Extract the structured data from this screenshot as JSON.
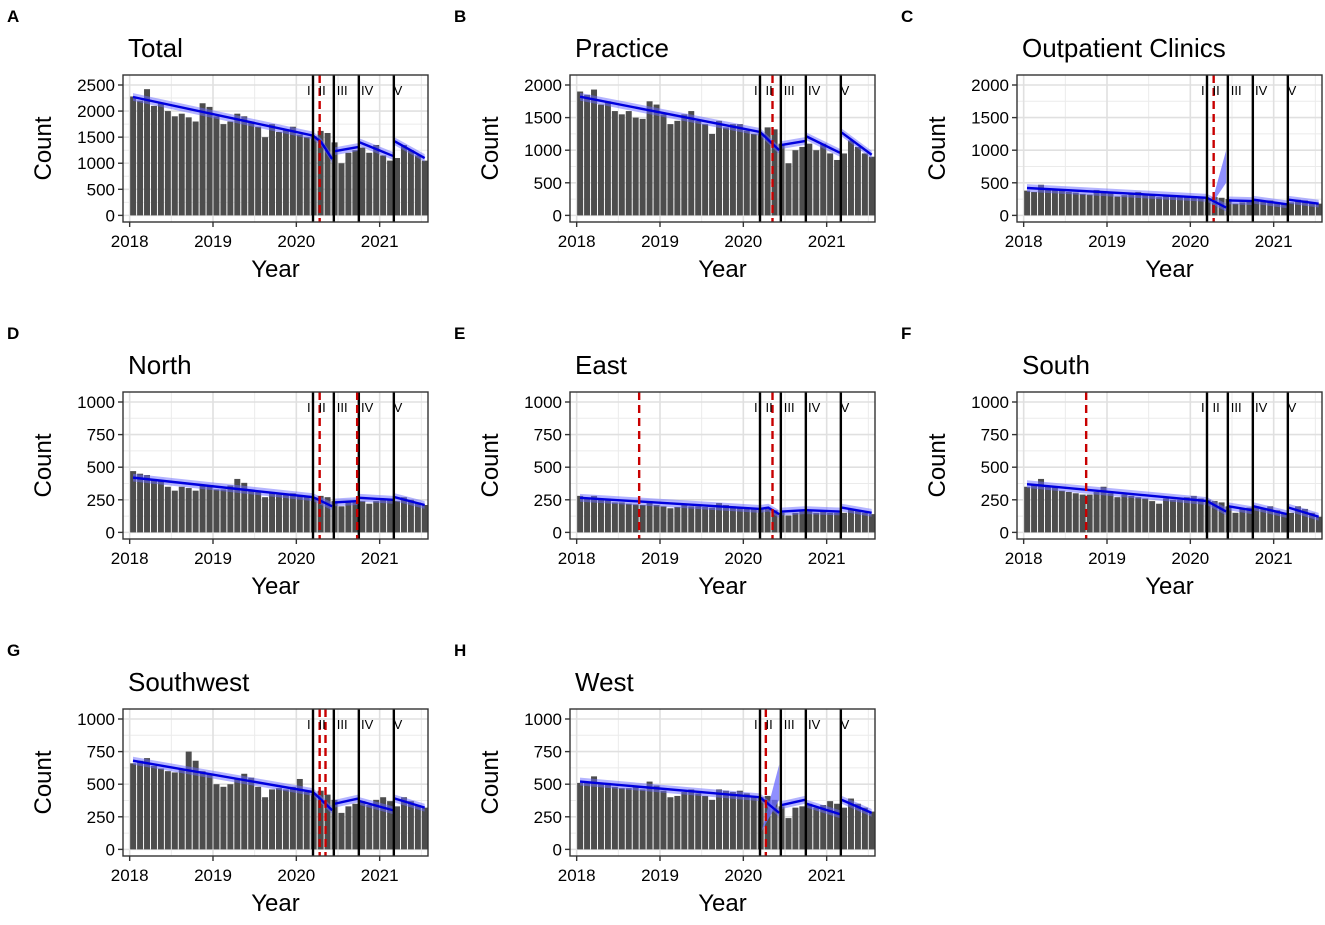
{
  "figure": {
    "phase_labels": [
      "I",
      "II",
      "III",
      "IV",
      "V"
    ],
    "x_ticks": [
      2018,
      2019,
      2020,
      2021
    ],
    "axis_titles": {
      "x": "Year",
      "y": "Count"
    },
    "colors": {
      "bar": "#4d4d4d",
      "trend": "#0000dd",
      "band": "#6a6aff",
      "breakpoint": "#c80000",
      "phase_line": "#000000"
    }
  },
  "chart_data": [
    {
      "type": "bar",
      "panel": "A",
      "title": "Total",
      "xlabel": "Year",
      "ylabel": "Count",
      "ylim": [
        0,
        2500
      ],
      "yticks": [
        0,
        500,
        1000,
        1500,
        2000,
        2500
      ],
      "xlim": [
        2017.92,
        2021.58
      ],
      "vlines": [
        2020.2,
        2020.45,
        2020.75,
        2021.17
      ],
      "breakpoints": [
        2020.28
      ],
      "values": [
        2280,
        2200,
        2420,
        2100,
        2150,
        2000,
        1900,
        1950,
        1880,
        1800,
        2150,
        2080,
        1900,
        1750,
        1800,
        1950,
        1900,
        1800,
        1700,
        1500,
        1750,
        1600,
        1650,
        1700,
        1550,
        1500,
        1520,
        1620,
        1580,
        1400,
        1000,
        1200,
        1250,
        1300,
        1200,
        1350,
        1150,
        1050,
        1100,
        1350,
        1250,
        1150,
        1050
      ],
      "trend": [
        [
          2018.04,
          2270
        ],
        [
          2020.2,
          1530
        ],
        [
          2020.3,
          1400
        ],
        [
          2020.43,
          1080
        ],
        null,
        [
          2020.46,
          1230
        ],
        [
          2020.74,
          1310
        ],
        null,
        [
          2020.76,
          1400
        ],
        [
          2021.16,
          1140
        ],
        null,
        [
          2021.18,
          1420
        ],
        [
          2021.54,
          1100
        ]
      ]
    },
    {
      "type": "bar",
      "panel": "B",
      "title": "Practice",
      "xlabel": "Year",
      "ylabel": "Count",
      "ylim": [
        0,
        2000
      ],
      "yticks": [
        0,
        500,
        1000,
        1500,
        2000
      ],
      "xlim": [
        2017.92,
        2021.58
      ],
      "vlines": [
        2020.2,
        2020.45,
        2020.75,
        2021.17
      ],
      "breakpoints": [
        2020.35
      ],
      "values": [
        1900,
        1850,
        1930,
        1700,
        1750,
        1600,
        1550,
        1600,
        1500,
        1480,
        1750,
        1700,
        1550,
        1400,
        1450,
        1550,
        1600,
        1450,
        1400,
        1250,
        1450,
        1350,
        1400,
        1400,
        1300,
        1250,
        1260,
        1350,
        1320,
        1100,
        800,
        1000,
        1050,
        1100,
        1000,
        1100,
        950,
        850,
        950,
        1150,
        1050,
        950,
        900
      ],
      "trend": [
        [
          2018.04,
          1820
        ],
        [
          2020.2,
          1280
        ],
        [
          2020.43,
          1000
        ],
        null,
        [
          2020.46,
          1080
        ],
        [
          2020.74,
          1140
        ],
        null,
        [
          2020.76,
          1210
        ],
        [
          2021.16,
          960
        ],
        null,
        [
          2021.18,
          1270
        ],
        [
          2021.54,
          930
        ]
      ]
    },
    {
      "type": "bar",
      "panel": "C",
      "title": "Outpatient Clinics",
      "xlabel": "Year",
      "ylabel": "Count",
      "ylim": [
        0,
        2000
      ],
      "yticks": [
        0,
        500,
        1000,
        1500,
        2000
      ],
      "xlim": [
        2017.92,
        2021.58
      ],
      "vlines": [
        2020.2,
        2020.45,
        2020.75,
        2021.17
      ],
      "breakpoints": [
        2020.28
      ],
      "values": [
        380,
        360,
        470,
        410,
        400,
        380,
        360,
        350,
        330,
        320,
        390,
        370,
        340,
        290,
        310,
        340,
        360,
        320,
        310,
        280,
        320,
        300,
        290,
        300,
        280,
        270,
        260,
        280,
        270,
        250,
        180,
        200,
        220,
        240,
        210,
        230,
        200,
        190,
        200,
        240,
        230,
        200,
        180
      ],
      "trend": [
        [
          2018.04,
          420
        ],
        [
          2020.2,
          270
        ],
        [
          2020.43,
          120
        ],
        null,
        [
          2020.46,
          230
        ],
        [
          2020.74,
          220
        ],
        null,
        [
          2020.76,
          240
        ],
        [
          2021.16,
          170
        ],
        null,
        [
          2021.18,
          240
        ],
        [
          2021.54,
          180
        ]
      ],
      "bands": [
        [
          2020.25,
          2020.43,
          500,
          1000,
          80
        ]
      ]
    },
    {
      "type": "bar",
      "panel": "D",
      "title": "North",
      "xlabel": "Year",
      "ylabel": "Count",
      "ylim": [
        0,
        1000
      ],
      "yticks": [
        0,
        250,
        500,
        750,
        1000
      ],
      "xlim": [
        2017.92,
        2021.58
      ],
      "vlines": [
        2020.2,
        2020.45,
        2020.75,
        2021.17
      ],
      "breakpoints": [
        2020.28,
        2020.73
      ],
      "values": [
        470,
        450,
        440,
        400,
        390,
        350,
        320,
        350,
        340,
        320,
        360,
        350,
        330,
        330,
        360,
        410,
        380,
        320,
        310,
        270,
        310,
        290,
        290,
        300,
        280,
        280,
        270,
        280,
        270,
        240,
        200,
        230,
        230,
        240,
        220,
        240,
        250,
        250,
        240,
        270,
        250,
        230,
        210
      ],
      "trend": [
        [
          2018.04,
          420
        ],
        [
          2020.2,
          270
        ],
        [
          2020.43,
          200
        ],
        null,
        [
          2020.46,
          230
        ],
        [
          2020.74,
          240
        ],
        null,
        [
          2020.76,
          265
        ],
        [
          2021.16,
          250
        ],
        null,
        [
          2021.18,
          270
        ],
        [
          2021.54,
          210
        ]
      ]
    },
    {
      "type": "bar",
      "panel": "E",
      "title": "East",
      "xlabel": "Year",
      "ylabel": "Count",
      "ylim": [
        0,
        1000
      ],
      "yticks": [
        0,
        250,
        500,
        750,
        1000
      ],
      "xlim": [
        2017.92,
        2021.58
      ],
      "vlines": [
        2020.2,
        2020.45,
        2020.75,
        2021.17
      ],
      "breakpoints": [
        2018.75,
        2020.35
      ],
      "values": [
        280,
        260,
        280,
        250,
        260,
        230,
        230,
        220,
        215,
        210,
        240,
        210,
        200,
        185,
        195,
        210,
        200,
        200,
        195,
        190,
        225,
        210,
        200,
        195,
        190,
        180,
        175,
        180,
        170,
        150,
        130,
        150,
        160,
        160,
        150,
        165,
        150,
        150,
        150,
        180,
        165,
        150,
        140
      ],
      "trend": [
        [
          2018.04,
          265
        ],
        [
          2020.2,
          180
        ],
        [
          2020.3,
          190
        ],
        [
          2020.43,
          140
        ],
        null,
        [
          2020.46,
          160
        ],
        [
          2020.74,
          170
        ],
        null,
        [
          2020.76,
          170
        ],
        [
          2021.16,
          160
        ],
        null,
        [
          2021.18,
          190
        ],
        [
          2021.54,
          150
        ]
      ]
    },
    {
      "type": "bar",
      "panel": "F",
      "title": "South",
      "xlabel": "Year",
      "ylabel": "Count",
      "ylim": [
        0,
        1000
      ],
      "yticks": [
        0,
        250,
        500,
        750,
        1000
      ],
      "xlim": [
        2017.92,
        2021.58
      ],
      "vlines": [
        2020.2,
        2020.45,
        2020.75,
        2021.17
      ],
      "breakpoints": [
        2018.75
      ],
      "values": [
        350,
        360,
        410,
        350,
        350,
        320,
        310,
        300,
        290,
        290,
        310,
        350,
        300,
        270,
        290,
        280,
        270,
        260,
        240,
        220,
        260,
        250,
        250,
        270,
        280,
        260,
        250,
        240,
        230,
        200,
        150,
        180,
        190,
        200,
        180,
        200,
        170,
        150,
        150,
        200,
        180,
        150,
        120
      ],
      "trend": [
        [
          2018.04,
          370
        ],
        [
          2020.2,
          240
        ],
        [
          2020.43,
          160
        ],
        null,
        [
          2020.46,
          200
        ],
        [
          2020.74,
          170
        ],
        null,
        [
          2020.76,
          200
        ],
        [
          2021.16,
          140
        ],
        null,
        [
          2021.18,
          190
        ],
        [
          2021.54,
          120
        ]
      ]
    },
    {
      "type": "bar",
      "panel": "G",
      "title": "Southwest",
      "xlabel": "Year",
      "ylabel": "Count",
      "ylim": [
        0,
        1000
      ],
      "yticks": [
        0,
        250,
        500,
        750,
        1000
      ],
      "xlim": [
        2017.92,
        2021.58
      ],
      "vlines": [
        2020.2,
        2020.45,
        2020.75,
        2021.17
      ],
      "breakpoints": [
        2020.28,
        2020.35
      ],
      "values": [
        660,
        680,
        700,
        640,
        620,
        600,
        590,
        620,
        750,
        680,
        600,
        580,
        500,
        480,
        500,
        540,
        580,
        550,
        480,
        400,
        460,
        470,
        460,
        480,
        540,
        440,
        430,
        450,
        420,
        380,
        280,
        330,
        350,
        370,
        340,
        380,
        400,
        370,
        330,
        400,
        370,
        340,
        320
      ],
      "trend": [
        [
          2018.04,
          680
        ],
        [
          2020.2,
          440
        ],
        [
          2020.3,
          380
        ],
        [
          2020.43,
          300
        ],
        null,
        [
          2020.46,
          350
        ],
        [
          2020.74,
          390
        ],
        null,
        [
          2020.76,
          370
        ],
        [
          2021.16,
          300
        ],
        null,
        [
          2021.18,
          390
        ],
        [
          2021.54,
          320
        ]
      ]
    },
    {
      "type": "bar",
      "panel": "H",
      "title": "West",
      "xlabel": "Year",
      "ylabel": "Count",
      "ylim": [
        0,
        1000
      ],
      "yticks": [
        0,
        250,
        500,
        750,
        1000
      ],
      "xlim": [
        2017.92,
        2021.58
      ],
      "vlines": [
        2020.2,
        2020.45,
        2020.75,
        2021.17
      ],
      "breakpoints": [
        2020.27
      ],
      "values": [
        510,
        510,
        560,
        500,
        510,
        480,
        470,
        470,
        480,
        460,
        520,
        490,
        450,
        400,
        410,
        440,
        460,
        430,
        410,
        380,
        460,
        450,
        440,
        450,
        430,
        410,
        400,
        410,
        380,
        330,
        240,
        320,
        330,
        350,
        320,
        340,
        370,
        350,
        320,
        390,
        350,
        320,
        290
      ],
      "trend": [
        [
          2018.04,
          520
        ],
        [
          2020.2,
          400
        ],
        [
          2020.43,
          280
        ],
        null,
        [
          2020.46,
          340
        ],
        [
          2020.74,
          380
        ],
        null,
        [
          2020.76,
          350
        ],
        [
          2021.16,
          270
        ],
        null,
        [
          2021.18,
          380
        ],
        [
          2021.54,
          280
        ]
      ],
      "bands": [
        [
          2020.22,
          2020.43,
          380,
          650,
          70
        ]
      ]
    }
  ]
}
